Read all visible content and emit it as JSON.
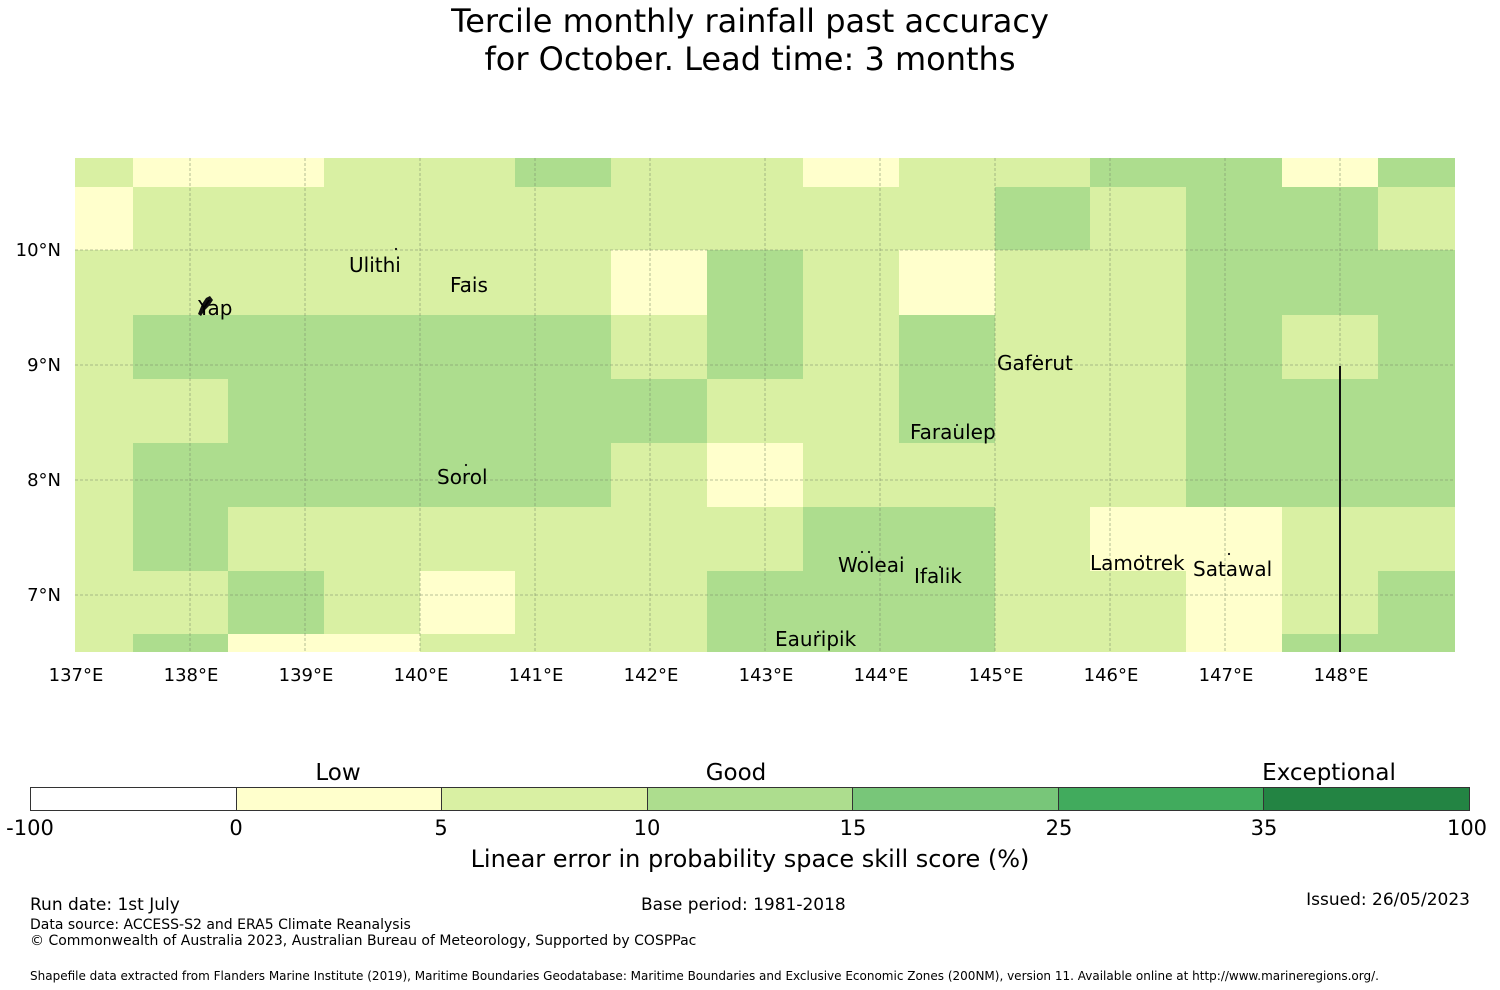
{
  "title": {
    "line1": "Tercile monthly rainfall past accuracy",
    "line2": "for October. Lead time: 3 months"
  },
  "map": {
    "lon_ticks": [
      "137°E",
      "138°E",
      "139°E",
      "140°E",
      "141°E",
      "142°E",
      "143°E",
      "144°E",
      "145°E",
      "146°E",
      "147°E",
      "148°E"
    ],
    "lat_ticks": [
      "10°N",
      "9°N",
      "8°N",
      "7°N"
    ],
    "lon_range": [
      137,
      149
    ],
    "lat_range": [
      6.5,
      10.8
    ],
    "grid": true,
    "palette": {
      "pale_yellow": "#ffffcc",
      "light_green": "#d9f0a3",
      "green": "#addd8e",
      "mid_green": "#78c679"
    },
    "places": [
      "Yap",
      "Ulithi",
      "Fais",
      "Gaferut",
      "Faraulep",
      "Sorol",
      "Woleai",
      "Ifalik",
      "Lamotrek",
      "Satawal",
      "Eauripik"
    ]
  },
  "colorbar": {
    "categories": [
      "Low",
      "Good",
      "Exceptional"
    ],
    "ticks": [
      "-100",
      "0",
      "5",
      "10",
      "15",
      "25",
      "35",
      "100"
    ],
    "colors": [
      "#ffffff",
      "#ffffcc",
      "#d9f0a3",
      "#addd8e",
      "#78c679",
      "#41ab5d",
      "#238443"
    ],
    "label": "Linear error in probability space skill score (%)"
  },
  "footer": {
    "run_date": "Run date: 1st July",
    "base_period": "Base period: 1981-2018",
    "issued": "Issued: 26/05/2023",
    "data_source": "Data source: ACCESS-S2 and ERA5 Climate Reanalysis",
    "copyright": "© Commonwealth of Australia 2023, Australian Bureau of Meteorology, Supported by COSPPac",
    "shapefile": "Shapefile data extracted from Flanders Marine Institute (2019), Maritime Boundaries Geodatabase: Maritime Boundaries and Exclusive Economic Zones (200NM), version 11. Available online at http://www.marineregions.org/."
  }
}
